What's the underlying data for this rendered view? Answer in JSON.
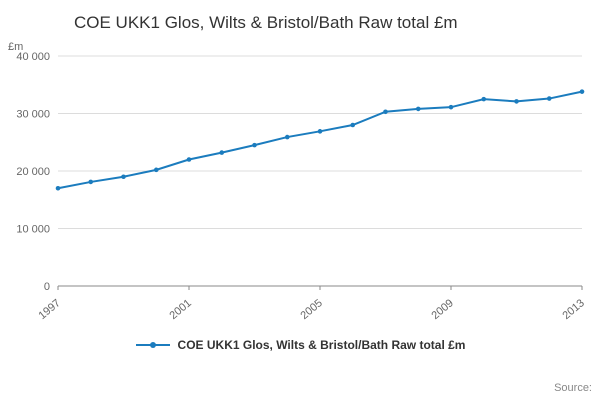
{
  "header": {
    "title": "COE UKK1 Glos, Wilts & Bristol/Bath Raw total £m"
  },
  "colors": {
    "line": "#1b7cbe"
  },
  "chart_data": {
    "type": "line",
    "title": "COE UKK1 Glos, Wilts & Bristol/Bath Raw total £m",
    "xlabel": "",
    "ylabel": "£m",
    "x": [
      1997,
      1998,
      1999,
      2000,
      2001,
      2002,
      2003,
      2004,
      2005,
      2006,
      2007,
      2008,
      2009,
      2010,
      2011,
      2012,
      2013
    ],
    "series": [
      {
        "name": "COE UKK1 Glos, Wilts & Bristol/Bath Raw total £m",
        "values": [
          17000,
          18100,
          19000,
          20200,
          22000,
          23200,
          24500,
          25900,
          26900,
          28000,
          30300,
          30800,
          31100,
          32500,
          32100,
          32600,
          33800
        ]
      }
    ],
    "ylim": [
      0,
      40000
    ],
    "yticks": [
      0,
      10000,
      20000,
      30000,
      40000
    ],
    "ytick_labels": [
      "0",
      "10 000",
      "20 000",
      "30 000",
      "40 000"
    ],
    "xticks": [
      1997,
      2001,
      2005,
      2009,
      2013
    ],
    "xtick_labels": [
      "1997",
      "2001",
      "2005",
      "2009",
      "2013"
    ],
    "grid": "horizontal",
    "markers": true,
    "legend_position": "bottom"
  },
  "legend": {
    "label": "COE UKK1 Glos, Wilts & Bristol/Bath Raw total £m"
  },
  "footer": {
    "source_label": "Source:"
  }
}
